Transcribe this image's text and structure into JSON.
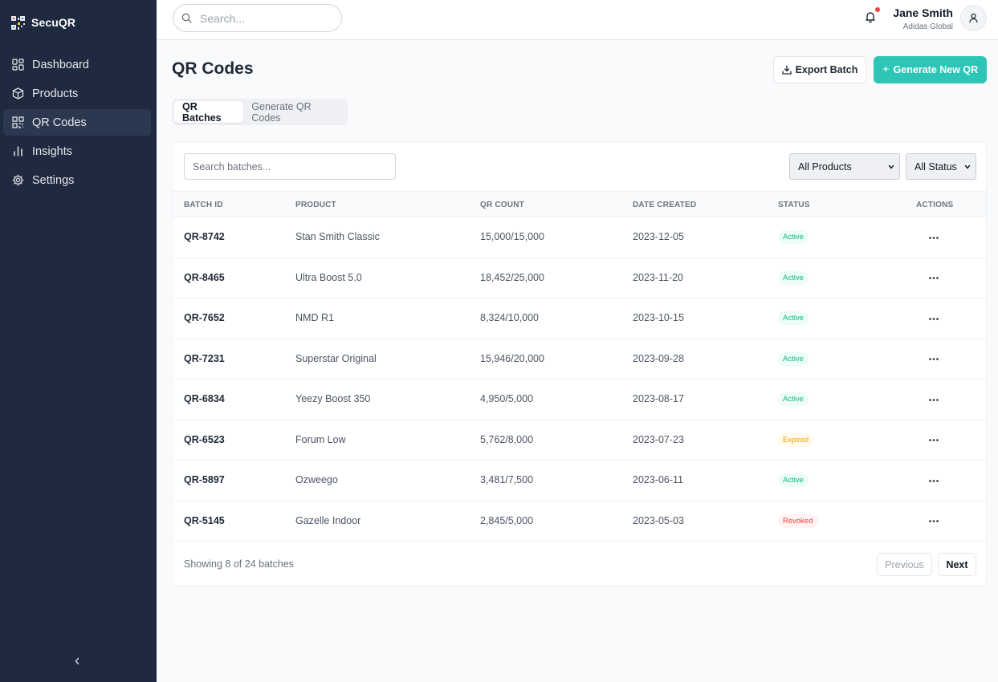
{
  "brand": {
    "name": "SecuQR",
    "icon": "qr-logo-icon"
  },
  "sidebar": {
    "items": [
      {
        "label": "Dashboard",
        "icon": "dashboard-icon",
        "active": false
      },
      {
        "label": "Products",
        "icon": "box-icon",
        "active": false
      },
      {
        "label": "QR Codes",
        "icon": "qr-code-icon",
        "active": true
      },
      {
        "label": "Insights",
        "icon": "bar-chart-icon",
        "active": false
      },
      {
        "label": "Settings",
        "icon": "gear-icon",
        "active": false
      }
    ]
  },
  "topbar": {
    "search_placeholder": "Search...",
    "user": {
      "name": "Jane Smith",
      "org": "Adidas Global"
    }
  },
  "header": {
    "title": "QR Codes",
    "export_label": "Export Batch",
    "generate_label": "Generate New QR"
  },
  "tabs": [
    {
      "label": "QR Batches",
      "active": true
    },
    {
      "label": "Generate QR Codes",
      "active": false
    }
  ],
  "filters": {
    "search_placeholder": "Search batches...",
    "product_select": "All Products",
    "status_select": "All Status"
  },
  "table": {
    "columns": [
      "BATCH ID",
      "PRODUCT",
      "QR COUNT",
      "DATE CREATED",
      "STATUS",
      "ACTIONS"
    ],
    "rows": [
      {
        "id": "QR-8742",
        "product": "Stan Smith Classic",
        "count": "15,000/15,000",
        "date": "2023-12-05",
        "status": "Active"
      },
      {
        "id": "QR-8465",
        "product": "Ultra Boost 5.0",
        "count": "18,452/25,000",
        "date": "2023-11-20",
        "status": "Active"
      },
      {
        "id": "QR-7652",
        "product": "NMD R1",
        "count": "8,324/10,000",
        "date": "2023-10-15",
        "status": "Active"
      },
      {
        "id": "QR-7231",
        "product": "Superstar Original",
        "count": "15,946/20,000",
        "date": "2023-09-28",
        "status": "Active"
      },
      {
        "id": "QR-6834",
        "product": "Yeezy Boost 350",
        "count": "4,950/5,000",
        "date": "2023-08-17",
        "status": "Active"
      },
      {
        "id": "QR-6523",
        "product": "Forum Low",
        "count": "5,762/8,000",
        "date": "2023-07-23",
        "status": "Expired"
      },
      {
        "id": "QR-5897",
        "product": "Ozweego",
        "count": "3,481/7,500",
        "date": "2023-06-11",
        "status": "Active"
      },
      {
        "id": "QR-5145",
        "product": "Gazelle Indoor",
        "count": "2,845/5,000",
        "date": "2023-05-03",
        "status": "Revoked"
      }
    ]
  },
  "pagination": {
    "summary": "Showing 8 of 24 batches",
    "previous_label": "Previous",
    "next_label": "Next"
  },
  "colors": {
    "sidebar_bg": "#1f2a40",
    "accent": "#2cc5b6",
    "active": "#10b981",
    "expired": "#f59e0b",
    "revoked": "#ef4444"
  }
}
